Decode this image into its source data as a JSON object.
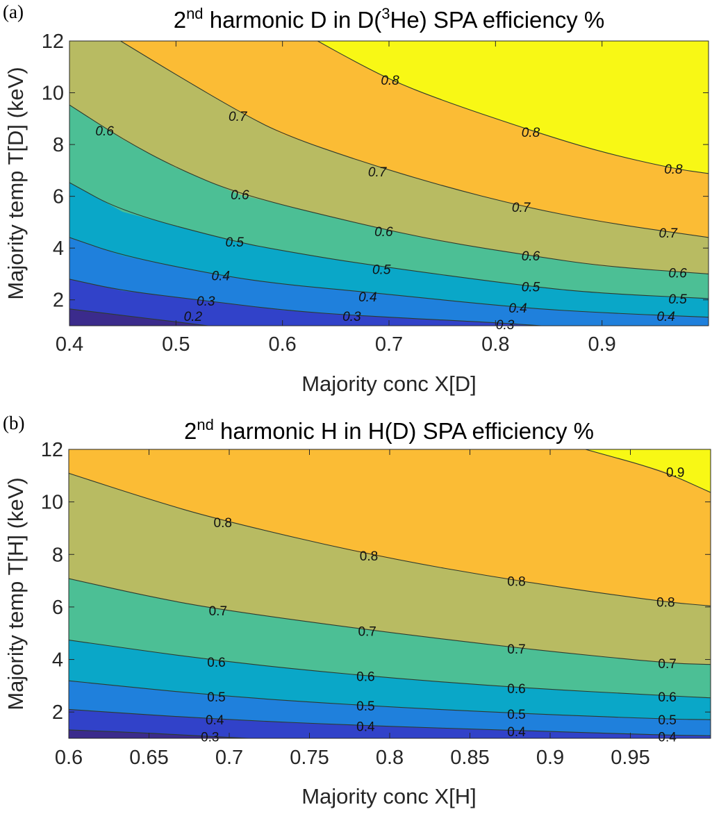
{
  "chart_data": [
    {
      "type": "contour",
      "panel": "(a)",
      "title": [
        {
          "text": "2",
          "sup": false
        },
        {
          "text": "nd",
          "sup": true
        },
        {
          "text": " harmonic D in D(",
          "sup": false
        },
        {
          "text": "3",
          "sup": true
        },
        {
          "text": "He) SPA efficiency %",
          "sup": false
        }
      ],
      "xlabel": "Majority conc X[D]",
      "ylabel": "Majority temp T[D] (keV)",
      "xlim": [
        0.4,
        1.0
      ],
      "ylim": [
        1,
        12
      ],
      "xticks": [
        0.4,
        0.5,
        0.6,
        0.7,
        0.8,
        0.9
      ],
      "xtick_labels": [
        "0.4",
        "0.5",
        "0.6",
        "0.7",
        "0.8",
        "0.9"
      ],
      "yticks": [
        2,
        4,
        6,
        8,
        10,
        12
      ],
      "ytick_labels": [
        "2",
        "4",
        "6",
        "8",
        "10",
        "12"
      ],
      "colors": [
        "#3b2b8c",
        "#3142c9",
        "#1f80dc",
        "#0aa7c8",
        "#4cbf95",
        "#b8bb62",
        "#fbbc35",
        "#f8f815"
      ],
      "contours": [
        {
          "level": 0.2,
          "points": [
            [
              0.4,
              1.65
            ],
            [
              0.45,
              1.4
            ],
            [
              0.5,
              1.15
            ],
            [
              0.53,
              1.0
            ]
          ]
        },
        {
          "level": 0.3,
          "points": [
            [
              0.4,
              2.8
            ],
            [
              0.45,
              2.35
            ],
            [
              0.528,
              1.97
            ],
            [
              0.6,
              1.6
            ],
            [
              0.674,
              1.38
            ],
            [
              0.8,
              1.12
            ],
            [
              0.843,
              1.0
            ]
          ]
        },
        {
          "level": 0.4,
          "points": [
            [
              0.4,
              4.41
            ],
            [
              0.45,
              3.7
            ],
            [
              0.542,
              2.94
            ],
            [
              0.6,
              2.6
            ],
            [
              0.674,
              2.32
            ],
            [
              0.821,
              1.7
            ],
            [
              0.9,
              1.5
            ],
            [
              1.0,
              1.33
            ]
          ]
        },
        {
          "level": 0.5,
          "points": [
            [
              0.4,
              6.53
            ],
            [
              0.45,
              5.4
            ],
            [
              0.555,
              4.25
            ],
            [
              0.6,
              3.9
            ],
            [
              0.674,
              3.39
            ],
            [
              0.833,
              2.51
            ],
            [
              0.9,
              2.25
            ],
            [
              1.0,
              2.05
            ]
          ]
        },
        {
          "level": 0.6,
          "points": [
            [
              0.4,
              9.53
            ],
            [
              0.45,
              8.2
            ],
            [
              0.5,
              7.1
            ],
            [
              0.56,
              6.07
            ],
            [
              0.674,
              4.92
            ],
            [
              0.75,
              4.25
            ],
            [
              0.833,
              3.71
            ],
            [
              0.9,
              3.3
            ],
            [
              1.0,
              3.0
            ]
          ]
        },
        {
          "level": 0.7,
          "points": [
            [
              0.448,
              12
            ],
            [
              0.5,
              10.7
            ],
            [
              0.558,
              9.3
            ],
            [
              0.6,
              8.4
            ],
            [
              0.674,
              7.34
            ],
            [
              0.75,
              6.4
            ],
            [
              0.824,
              5.62
            ],
            [
              0.9,
              5.0
            ],
            [
              1.0,
              4.41
            ]
          ]
        },
        {
          "level": 0.8,
          "points": [
            [
              0.633,
              12
            ],
            [
              0.661,
              11.36
            ],
            [
              0.701,
              10.5
            ],
            [
              0.75,
              9.7
            ],
            [
              0.837,
              8.49
            ],
            [
              0.9,
              7.7
            ],
            [
              0.967,
              7.07
            ],
            [
              1.0,
              6.88
            ]
          ]
        }
      ],
      "labels": [
        {
          "text": "0.6",
          "x": 0.433,
          "y": 8.54
        },
        {
          "text": "0.7",
          "x": 0.558,
          "y": 9.1
        },
        {
          "text": "0.6",
          "x": 0.56,
          "y": 6.07
        },
        {
          "text": "0.5",
          "x": 0.555,
          "y": 4.25
        },
        {
          "text": "0.4",
          "x": 0.542,
          "y": 2.94
        },
        {
          "text": "0.3",
          "x": 0.528,
          "y": 1.97
        },
        {
          "text": "0.2",
          "x": 0.516,
          "y": 1.38
        },
        {
          "text": "0.8",
          "x": 0.701,
          "y": 10.5
        },
        {
          "text": "0.8",
          "x": 0.833,
          "y": 8.49
        },
        {
          "text": "0.8",
          "x": 0.967,
          "y": 7.07
        },
        {
          "text": "0.7",
          "x": 0.689,
          "y": 6.96
        },
        {
          "text": "0.7",
          "x": 0.824,
          "y": 5.59
        },
        {
          "text": "0.7",
          "x": 0.962,
          "y": 4.6
        },
        {
          "text": "0.6",
          "x": 0.695,
          "y": 4.65
        },
        {
          "text": "0.6",
          "x": 0.833,
          "y": 3.71
        },
        {
          "text": "0.6",
          "x": 0.971,
          "y": 3.05
        },
        {
          "text": "0.5",
          "x": 0.693,
          "y": 3.18
        },
        {
          "text": "0.5",
          "x": 0.833,
          "y": 2.51
        },
        {
          "text": "0.5",
          "x": 0.971,
          "y": 2.05
        },
        {
          "text": "0.4",
          "x": 0.68,
          "y": 2.13
        },
        {
          "text": "0.4",
          "x": 0.821,
          "y": 1.7
        },
        {
          "text": "0.4",
          "x": 0.96,
          "y": 1.38
        },
        {
          "text": "0.3",
          "x": 0.665,
          "y": 1.38
        },
        {
          "text": "0.3",
          "x": 0.809,
          "y": 1.06
        }
      ]
    },
    {
      "type": "contour",
      "panel": "(b)",
      "title": [
        {
          "text": "2",
          "sup": false
        },
        {
          "text": "nd",
          "sup": true
        },
        {
          "text": " harmonic H in H(D) SPA efficiency %",
          "sup": false
        }
      ],
      "xlabel": "Majority conc X[H]",
      "ylabel": "Majority temp T[H] (keV)",
      "xlim": [
        0.6,
        1.0
      ],
      "ylim": [
        1,
        12
      ],
      "xticks": [
        0.6,
        0.65,
        0.7,
        0.75,
        0.8,
        0.85,
        0.9,
        0.95
      ],
      "xtick_labels": [
        "0.6",
        "0.65",
        "0.7",
        "0.75",
        "0.8",
        "0.85",
        "0.9",
        "0.95"
      ],
      "yticks": [
        2,
        4,
        6,
        8,
        10,
        12
      ],
      "ytick_labels": [
        "2",
        "4",
        "6",
        "8",
        "10",
        "12"
      ],
      "colors": [
        "#3b2b8c",
        "#3142c9",
        "#1f80dc",
        "#0aa7c8",
        "#4cbf95",
        "#b8bb62",
        "#fbbc35",
        "#f8f815"
      ],
      "contours": [
        {
          "level": 0.3,
          "points": [
            [
              0.6,
              1.32
            ],
            [
              0.65,
              1.2
            ],
            [
              0.688,
              1.07
            ],
            [
              0.712,
              1.0
            ]
          ]
        },
        {
          "level": 0.4,
          "points": [
            [
              0.6,
              2.1
            ],
            [
              0.691,
              1.73
            ],
            [
              0.785,
              1.48
            ],
            [
              0.879,
              1.3
            ],
            [
              0.973,
              1.12
            ],
            [
              1.0,
              1.1
            ]
          ]
        },
        {
          "level": 0.5,
          "points": [
            [
              0.6,
              3.19
            ],
            [
              0.692,
              2.62
            ],
            [
              0.785,
              2.24
            ],
            [
              0.879,
              1.95
            ],
            [
              0.973,
              1.73
            ],
            [
              1.0,
              1.71
            ]
          ]
        },
        {
          "level": 0.6,
          "points": [
            [
              0.6,
              4.74
            ],
            [
              0.692,
              3.95
            ],
            [
              0.785,
              3.37
            ],
            [
              0.879,
              2.93
            ],
            [
              0.973,
              2.62
            ],
            [
              1.0,
              2.54
            ]
          ]
        },
        {
          "level": 0.7,
          "points": [
            [
              0.6,
              7.08
            ],
            [
              0.65,
              6.4
            ],
            [
              0.693,
              5.91
            ],
            [
              0.786,
              5.13
            ],
            [
              0.879,
              4.44
            ],
            [
              0.973,
              3.86
            ],
            [
              1.0,
              3.81
            ]
          ]
        },
        {
          "level": 0.8,
          "points": [
            [
              0.6,
              11.09
            ],
            [
              0.65,
              10.1
            ],
            [
              0.693,
              9.33
            ],
            [
              0.789,
              7.96
            ],
            [
              0.879,
              6.99
            ],
            [
              0.97,
              6.2
            ],
            [
              1.0,
              6.04
            ]
          ]
        },
        {
          "level": 0.9,
          "points": [
            [
              0.922,
              12
            ],
            [
              0.97,
              11.19
            ],
            [
              1.0,
              10.36
            ]
          ]
        }
      ],
      "labels": [
        {
          "text": "0.9",
          "x": 0.978,
          "y": 11.14
        },
        {
          "text": "0.8",
          "x": 0.696,
          "y": 9.23
        },
        {
          "text": "0.8",
          "x": 0.787,
          "y": 7.96
        },
        {
          "text": "0.8",
          "x": 0.879,
          "y": 6.99
        },
        {
          "text": "0.8",
          "x": 0.972,
          "y": 6.2
        },
        {
          "text": "0.7",
          "x": 0.693,
          "y": 5.86
        },
        {
          "text": "0.7",
          "x": 0.786,
          "y": 5.08
        },
        {
          "text": "0.7",
          "x": 0.879,
          "y": 4.41
        },
        {
          "text": "0.7",
          "x": 0.973,
          "y": 3.86
        },
        {
          "text": "0.6",
          "x": 0.692,
          "y": 3.91
        },
        {
          "text": "0.6",
          "x": 0.785,
          "y": 3.37
        },
        {
          "text": "0.6",
          "x": 0.879,
          "y": 2.91
        },
        {
          "text": "0.6",
          "x": 0.973,
          "y": 2.59
        },
        {
          "text": "0.5",
          "x": 0.692,
          "y": 2.59
        },
        {
          "text": "0.5",
          "x": 0.785,
          "y": 2.24
        },
        {
          "text": "0.5",
          "x": 0.879,
          "y": 1.92
        },
        {
          "text": "0.5",
          "x": 0.973,
          "y": 1.71
        },
        {
          "text": "0.4",
          "x": 0.691,
          "y": 1.71
        },
        {
          "text": "0.4",
          "x": 0.785,
          "y": 1.46
        },
        {
          "text": "0.4",
          "x": 0.879,
          "y": 1.27
        },
        {
          "text": "0.4",
          "x": 0.973,
          "y": 1.07
        },
        {
          "text": "0.3",
          "x": 0.688,
          "y": 1.07
        }
      ]
    }
  ]
}
